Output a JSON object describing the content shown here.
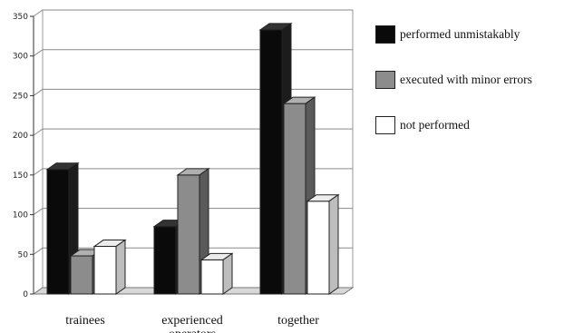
{
  "chart_data": {
    "type": "bar",
    "categories": [
      "trainees",
      "experienced operators",
      "together"
    ],
    "category_lines": [
      [
        "trainees"
      ],
      [
        "experienced",
        "operators"
      ],
      [
        "together"
      ]
    ],
    "series": [
      {
        "name": "performed unmistakably",
        "values": [
          157,
          85,
          333
        ],
        "color": "#0a0a0a"
      },
      {
        "name": "executed with minor errors",
        "values": [
          48,
          150,
          240
        ],
        "color": "#8c8c8c"
      },
      {
        "name": "not performed",
        "values": [
          60,
          43,
          117
        ],
        "color": "#ffffff"
      }
    ],
    "ylim": [
      0,
      350
    ],
    "yticks": [
      0,
      50,
      100,
      150,
      200,
      250,
      300,
      350
    ],
    "grid": true,
    "legend_position": "right"
  }
}
